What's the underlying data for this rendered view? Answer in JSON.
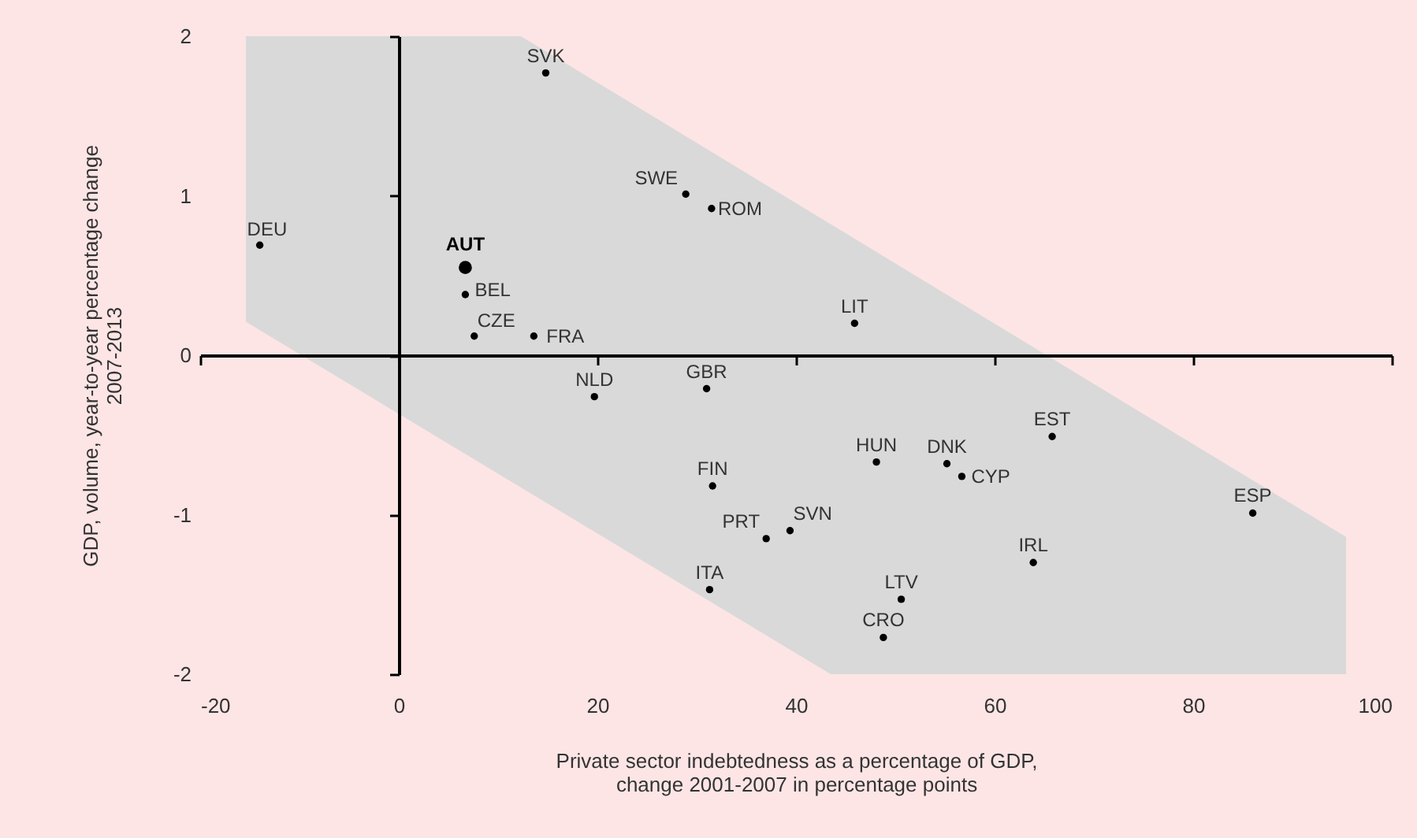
{
  "chart_data": {
    "type": "scatter",
    "xlabel": "Private sector indebtedness as a percentage of GDP,\nchange 2001-2007 in percentage points",
    "ylabel": "GDP, volume, year-to-year percentage change\n2007-2013",
    "xlim": [
      -20,
      100
    ],
    "ylim": [
      -2,
      2
    ],
    "xticks": [
      -20,
      0,
      20,
      40,
      60,
      80,
      100
    ],
    "yticks": [
      -2,
      -1,
      0,
      1,
      2
    ],
    "marker": "circle",
    "series": [
      {
        "type": "area",
        "marker": "none",
        "color": "#d9d9d9",
        "x": [
          -15.4,
          12.3,
          95.4,
          95.4,
          43.5,
          -15.4
        ],
        "values": [
          2,
          2,
          -1.14,
          -2,
          -2,
          0.21
        ]
      },
      {
        "color": "#000000",
        "x": [
          -14.0,
          14.8,
          28.9,
          31.5,
          6.7,
          7.6,
          13.6,
          45.9,
          19.7,
          31.0,
          48.1,
          55.2,
          56.7,
          65.8,
          31.6,
          37.0,
          39.4,
          86.0,
          63.9,
          31.3,
          50.6,
          48.8
        ],
        "values": [
          0.69,
          1.77,
          1.01,
          0.92,
          0.38,
          0.12,
          0.12,
          0.2,
          -0.26,
          -0.21,
          -0.67,
          -0.68,
          -0.76,
          -0.51,
          -0.82,
          -1.15,
          -1.1,
          -0.99,
          -1.3,
          -1.47,
          -1.53,
          -1.77
        ]
      },
      {
        "color": "#000000",
        "x": [
          6.7
        ],
        "values": [
          0.55
        ]
      }
    ],
    "annotations": [
      {
        "text": "DEU",
        "x": -14.0,
        "y": 0.69
      },
      {
        "text": "SVK",
        "x": 14.8,
        "y": 1.77
      },
      {
        "text": "SWE",
        "x": 28.9,
        "y": 1.01
      },
      {
        "text": "ROM",
        "x": 31.5,
        "y": 0.92
      },
      {
        "text": "BEL",
        "x": 6.7,
        "y": 0.38
      },
      {
        "text": "CZE",
        "x": 7.6,
        "y": 0.12
      },
      {
        "text": "FRA",
        "x": 13.6,
        "y": 0.12
      },
      {
        "text": "LIT",
        "x": 45.9,
        "y": 0.2
      },
      {
        "text": "NLD",
        "x": 19.7,
        "y": -0.26
      },
      {
        "text": "GBR",
        "x": 31.0,
        "y": -0.21
      },
      {
        "text": "HUN",
        "x": 48.1,
        "y": -0.67
      },
      {
        "text": "DNK",
        "x": 55.2,
        "y": -0.68
      },
      {
        "text": "CYP",
        "x": 56.7,
        "y": -0.76
      },
      {
        "text": "EST",
        "x": 65.8,
        "y": -0.51
      },
      {
        "text": "FIN",
        "x": 31.6,
        "y": -0.82
      },
      {
        "text": "PRT",
        "x": 37.0,
        "y": -1.15
      },
      {
        "text": "SVN",
        "x": 39.4,
        "y": -1.1
      },
      {
        "text": "ESP",
        "x": 86.0,
        "y": -0.99
      },
      {
        "text": "IRL",
        "x": 63.9,
        "y": -1.3
      },
      {
        "text": "ITA",
        "x": 31.3,
        "y": -1.47
      },
      {
        "text": "LTV",
        "x": 50.6,
        "y": -1.53
      },
      {
        "text": "CRO",
        "x": 48.8,
        "y": -1.77
      },
      {
        "text": "AUT",
        "x": 6.7,
        "y": 0.55
      }
    ]
  }
}
